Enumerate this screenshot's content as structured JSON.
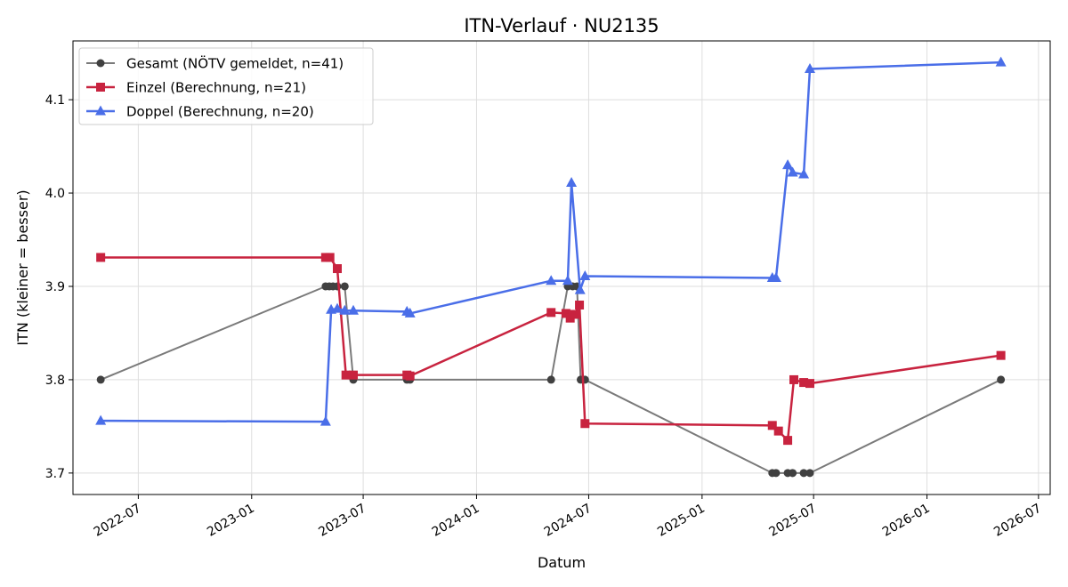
{
  "chart_data": {
    "type": "line",
    "title": "ITN-Verlauf · NU2135",
    "xlabel": "Datum",
    "ylabel": "ITN  (kleiner = besser)",
    "x_axis": "date",
    "xlim": [
      "2022-03-17",
      "2026-07-20"
    ],
    "ylim": [
      3.677,
      4.163
    ],
    "x_ticks": [
      "2022-07-01",
      "2023-01-01",
      "2023-07-01",
      "2024-01-01",
      "2024-07-01",
      "2025-01-01",
      "2025-07-01",
      "2026-01-01",
      "2026-07-01"
    ],
    "x_tick_labels": [
      "2022-07",
      "2023-01",
      "2023-07",
      "2024-01",
      "2024-07",
      "2025-01",
      "2025-07",
      "2026-01",
      "2026-07"
    ],
    "y_ticks": [
      3.7,
      3.8,
      3.9,
      4.0,
      4.1
    ],
    "y_tick_labels": [
      "3.7",
      "3.8",
      "3.9",
      "4.0",
      "4.1"
    ],
    "grid": true,
    "legend_position": "top-left",
    "series": [
      {
        "name": "Gesamt (NÖTV gemeldet, n=41)",
        "color": "#7a7a7a",
        "marker_color": "#404040",
        "marker": "circle",
        "points": [
          [
            "2022-05-01",
            3.8
          ],
          [
            "2023-05-01",
            3.9
          ],
          [
            "2023-05-07",
            3.9
          ],
          [
            "2023-05-13",
            3.9
          ],
          [
            "2023-05-20",
            3.9
          ],
          [
            "2023-06-01",
            3.9
          ],
          [
            "2023-06-15",
            3.8
          ],
          [
            "2023-09-10",
            3.8
          ],
          [
            "2023-09-15",
            3.8
          ],
          [
            "2024-05-01",
            3.8
          ],
          [
            "2024-05-28",
            3.9
          ],
          [
            "2024-06-05",
            3.9
          ],
          [
            "2024-06-12",
            3.9
          ],
          [
            "2024-06-18",
            3.8
          ],
          [
            "2024-06-25",
            3.8
          ],
          [
            "2025-04-25",
            3.7
          ],
          [
            "2025-05-01",
            3.7
          ],
          [
            "2025-05-20",
            3.7
          ],
          [
            "2025-05-28",
            3.7
          ],
          [
            "2025-06-15",
            3.7
          ],
          [
            "2025-06-25",
            3.7
          ],
          [
            "2026-05-01",
            3.8
          ]
        ]
      },
      {
        "name": "Einzel (Berechnung, n=21)",
        "color": "#c8233f",
        "marker_color": "#c8233f",
        "marker": "square",
        "points": [
          [
            "2022-05-01",
            3.931
          ],
          [
            "2023-05-01",
            3.931
          ],
          [
            "2023-05-08",
            3.931
          ],
          [
            "2023-05-20",
            3.919
          ],
          [
            "2023-06-03",
            3.805
          ],
          [
            "2023-06-15",
            3.805
          ],
          [
            "2023-09-10",
            3.805
          ],
          [
            "2023-09-15",
            3.804
          ],
          [
            "2024-05-01",
            3.872
          ],
          [
            "2024-05-25",
            3.871
          ],
          [
            "2024-06-01",
            3.866
          ],
          [
            "2024-06-08",
            3.87
          ],
          [
            "2024-06-16",
            3.88
          ],
          [
            "2024-06-25",
            3.753
          ],
          [
            "2025-04-25",
            3.751
          ],
          [
            "2025-05-05",
            3.745
          ],
          [
            "2025-05-20",
            3.735
          ],
          [
            "2025-05-30",
            3.8
          ],
          [
            "2025-06-15",
            3.797
          ],
          [
            "2025-06-25",
            3.796
          ],
          [
            "2026-05-01",
            3.826
          ]
        ]
      },
      {
        "name": "Doppel (Berechnung, n=20)",
        "color": "#4a6ee8",
        "marker_color": "#4a6ee8",
        "marker": "triangle",
        "points": [
          [
            "2022-05-01",
            3.756
          ],
          [
            "2023-05-01",
            3.755
          ],
          [
            "2023-05-10",
            3.875
          ],
          [
            "2023-05-20",
            3.876
          ],
          [
            "2023-06-01",
            3.874
          ],
          [
            "2023-06-15",
            3.874
          ],
          [
            "2023-09-10",
            3.873
          ],
          [
            "2023-09-15",
            3.871
          ],
          [
            "2024-05-01",
            3.906
          ],
          [
            "2024-05-28",
            3.906
          ],
          [
            "2024-06-03",
            4.011
          ],
          [
            "2024-06-17",
            3.896
          ],
          [
            "2024-06-25",
            3.911
          ],
          [
            "2025-04-25",
            3.909
          ],
          [
            "2025-05-01",
            3.909
          ],
          [
            "2025-05-20",
            4.03
          ],
          [
            "2025-05-28",
            4.022
          ],
          [
            "2025-06-15",
            4.02
          ],
          [
            "2025-06-25",
            4.133
          ],
          [
            "2026-05-01",
            4.14
          ]
        ]
      }
    ]
  }
}
